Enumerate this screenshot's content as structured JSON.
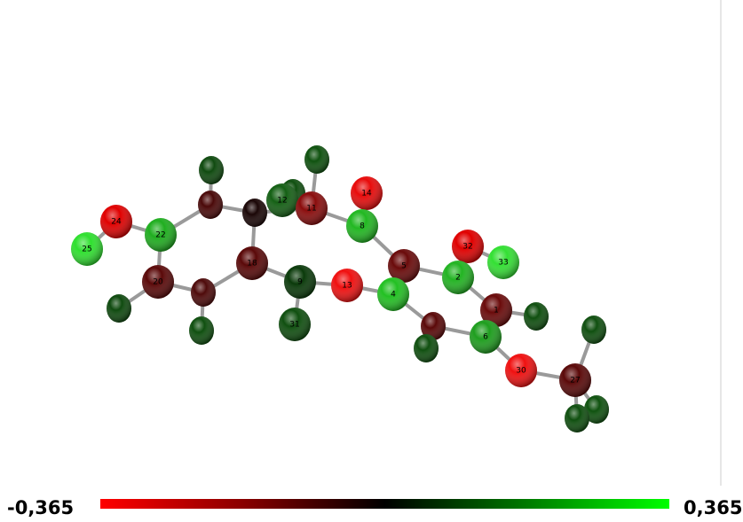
{
  "molecule": {
    "atoms": [
      {
        "label": "24",
        "color": "#e00000"
      },
      {
        "label": "22",
        "color": "#1fae1f"
      },
      {
        "label": "25",
        "color": "#2fe02f"
      },
      {
        "label": "20",
        "color": "#5a0808"
      },
      {
        "color": "#0f4a0f"
      },
      {
        "color": "#4e0a0a"
      },
      {
        "color": "#0f4f0f"
      },
      {
        "color": "#4a0808"
      },
      {
        "color": "#0f4a0f"
      },
      {
        "color": "#1a0606"
      },
      {
        "label": "18",
        "color": "#5a0808"
      },
      {
        "label": "12",
        "color": "#146014"
      },
      {
        "color": "#0f4f0f"
      },
      {
        "label": "11",
        "color": "#8a0c0c"
      },
      {
        "color": "#0f520f"
      },
      {
        "label": "9",
        "color": "#0a3a0a"
      },
      {
        "label": "31",
        "color": "#0f4f0f"
      },
      {
        "label": "13",
        "color": "#f01010"
      },
      {
        "label": "14",
        "color": "#e80a0a"
      },
      {
        "label": "8",
        "color": "#21b821"
      },
      {
        "label": "5",
        "color": "#6a0a0a"
      },
      {
        "label": "4",
        "color": "#22c022"
      },
      {
        "color": "#5a0808"
      },
      {
        "color": "#0f4f0f"
      },
      {
        "label": "32",
        "color": "#e00000"
      },
      {
        "label": "2",
        "color": "#22b422"
      },
      {
        "label": "33",
        "color": "#33e033"
      },
      {
        "label": "1",
        "color": "#6a0a0a"
      },
      {
        "label": "6",
        "color": "#1e9e1e"
      },
      {
        "color": "#0f4f0f"
      },
      {
        "label": "30",
        "color": "#f01010"
      },
      {
        "label": "27",
        "color": "#5a0808"
      },
      {
        "color": "#0f4f0f"
      },
      {
        "color": "#0f4f0f"
      },
      {
        "color": "#0f520f"
      }
    ]
  },
  "scale": {
    "min_label": "-0,365",
    "max_label": "0,365"
  }
}
